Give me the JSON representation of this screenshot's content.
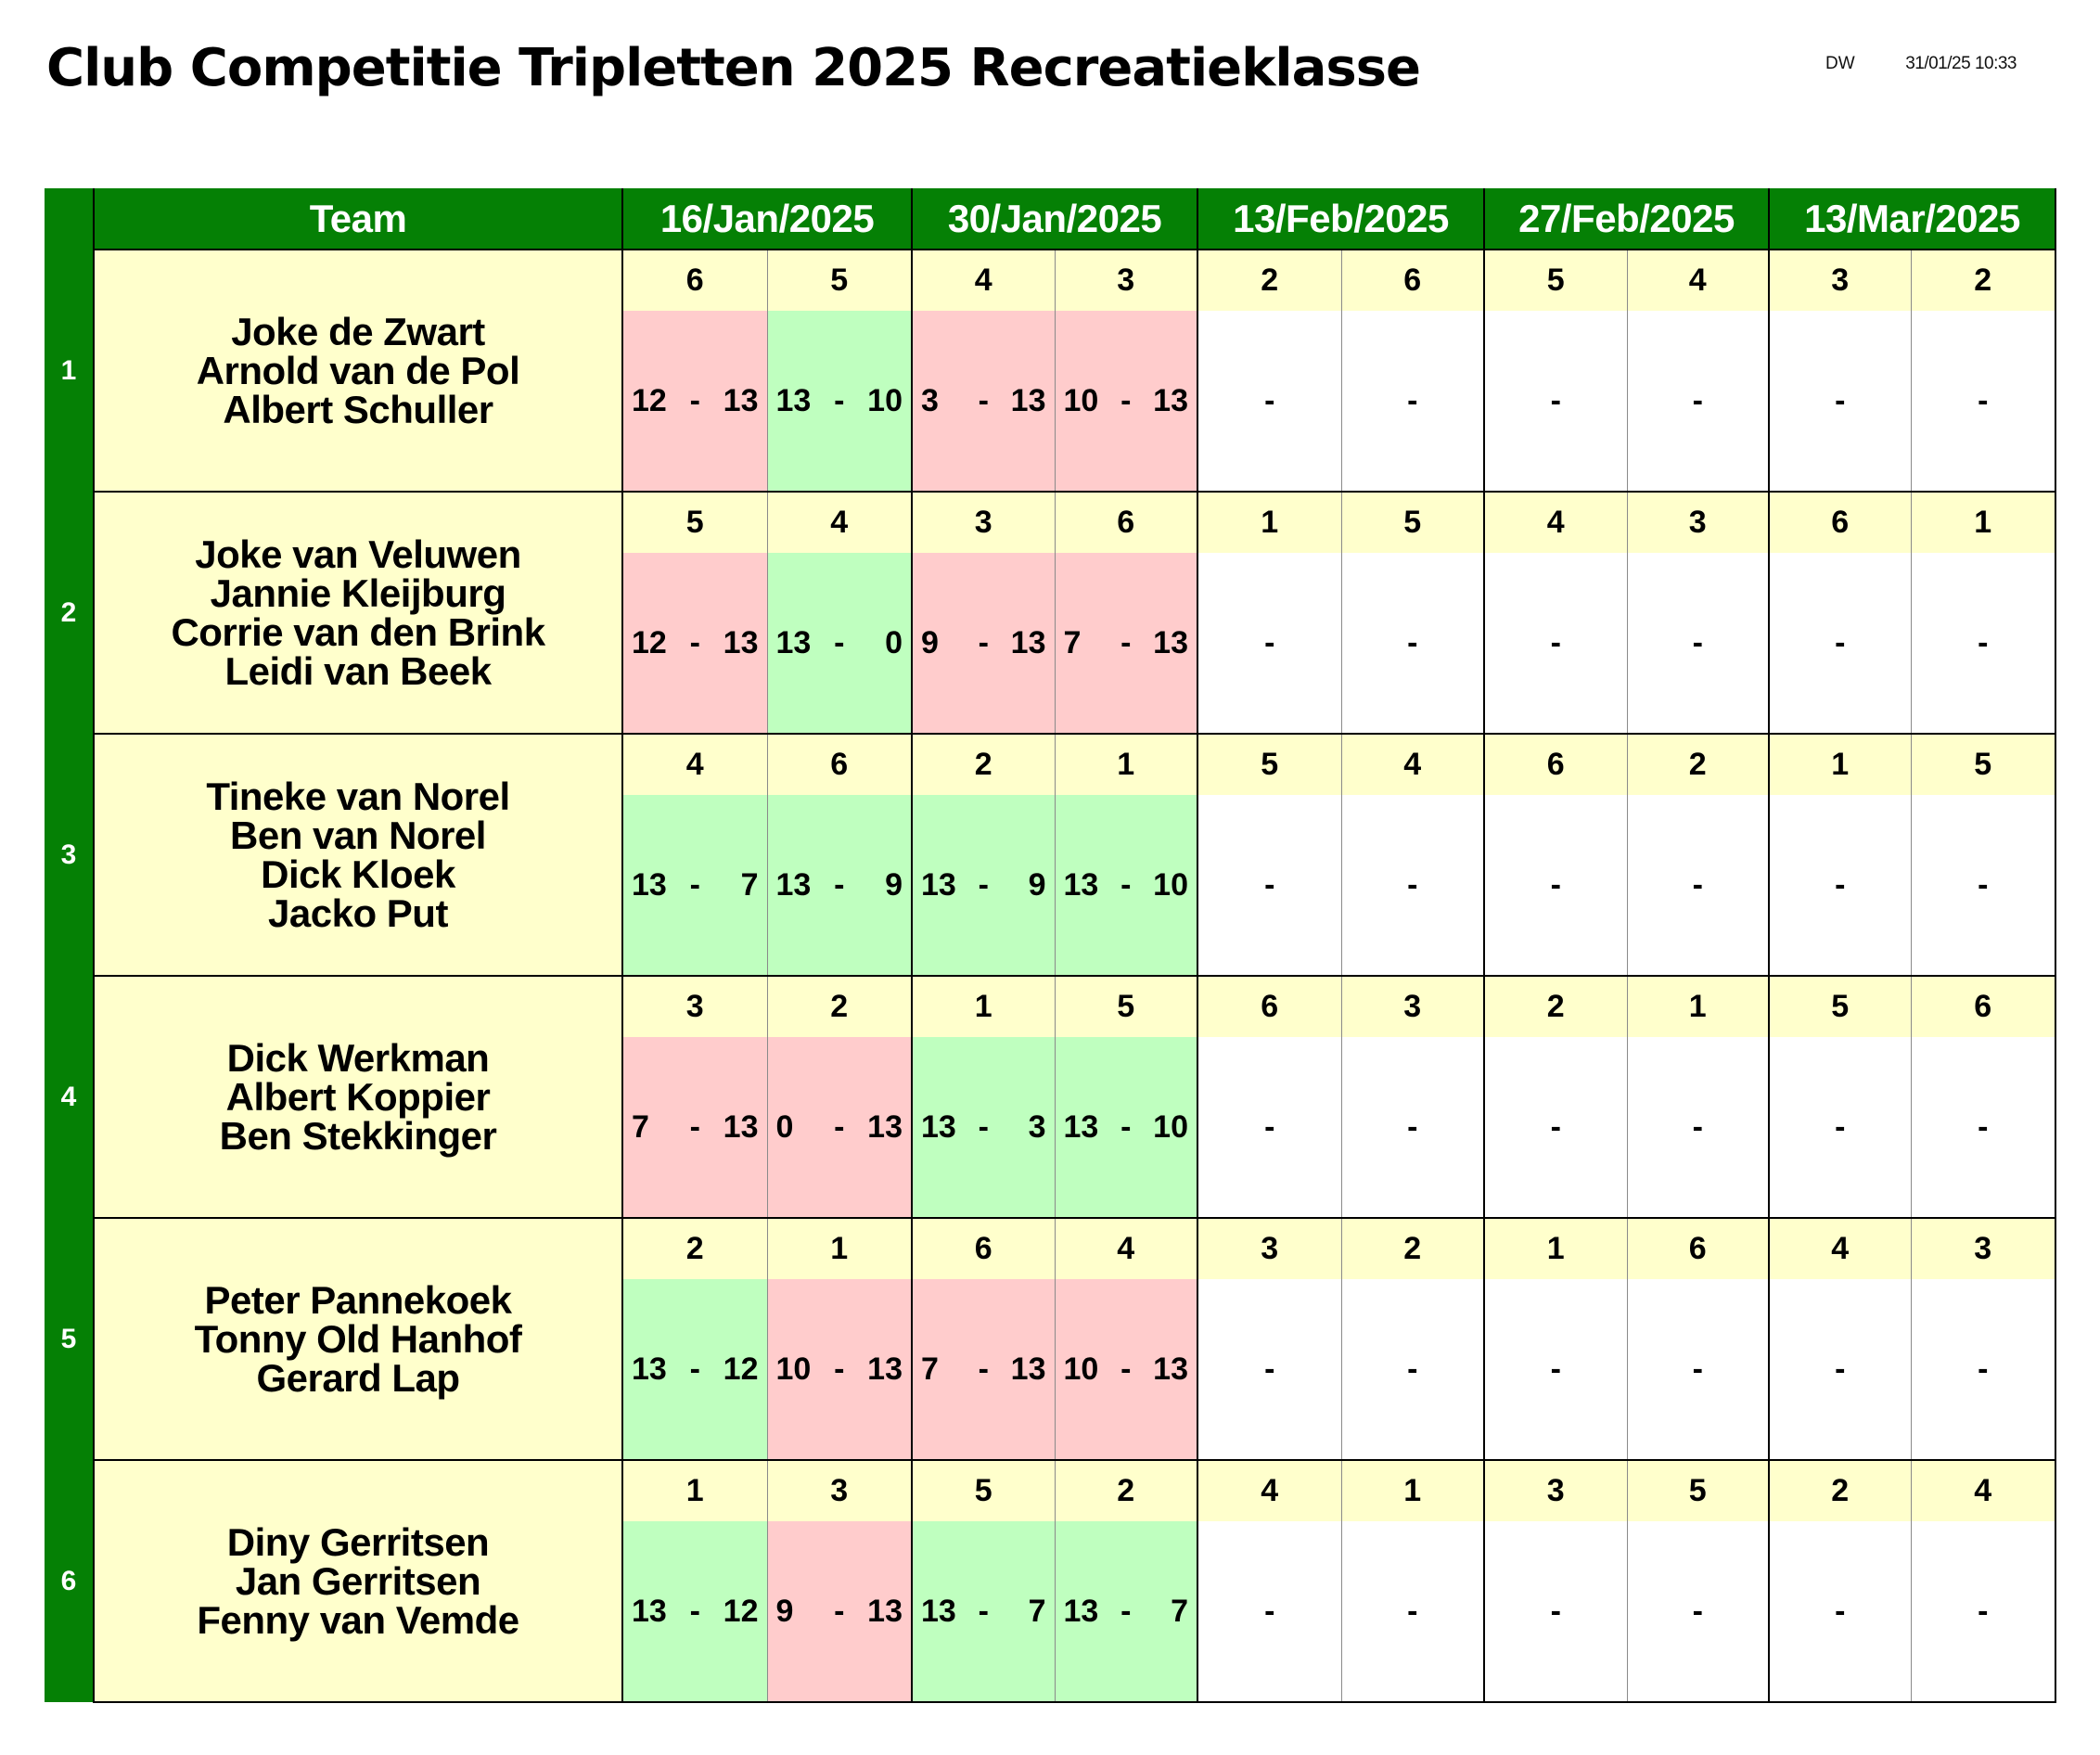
{
  "title": "Club Competitie Tripletten 2025 Recreatieklasse",
  "meta": {
    "initials": "DW",
    "timestamp": "31/01/25 10:33"
  },
  "header": {
    "team_label": "Team",
    "dates": [
      "16/Jan/2025",
      "30/Jan/2025",
      "13/Feb/2025",
      "27/Feb/2025",
      "13/Mar/2025"
    ]
  },
  "colors": {
    "header_green": "#058005",
    "team_yellow": "#ffffcc",
    "win_green": "#bfffbf",
    "loss_red": "#ffcccc"
  },
  "teams": [
    {
      "number": "1",
      "players": [
        "Joke de Zwart",
        "Arnold van de Pol",
        "Albert Schuller"
      ],
      "opponents": [
        "6",
        "5",
        "4",
        "3",
        "2",
        "6",
        "5",
        "4",
        "3",
        "2"
      ],
      "scores": [
        [
          "12",
          "13"
        ],
        [
          "13",
          "10"
        ],
        [
          "3",
          "13"
        ],
        [
          "10",
          "13"
        ],
        null,
        null,
        null,
        null,
        null,
        null
      ]
    },
    {
      "number": "2",
      "players": [
        "Joke van Veluwen",
        "Jannie Kleijburg",
        "Corrie van den Brink",
        "Leidi van Beek"
      ],
      "opponents": [
        "5",
        "4",
        "3",
        "6",
        "1",
        "5",
        "4",
        "3",
        "6",
        "1"
      ],
      "scores": [
        [
          "12",
          "13"
        ],
        [
          "13",
          "0"
        ],
        [
          "9",
          "13"
        ],
        [
          "7",
          "13"
        ],
        null,
        null,
        null,
        null,
        null,
        null
      ]
    },
    {
      "number": "3",
      "players": [
        "Tineke van Norel",
        "Ben van Norel",
        "Dick Kloek",
        "Jacko Put"
      ],
      "opponents": [
        "4",
        "6",
        "2",
        "1",
        "5",
        "4",
        "6",
        "2",
        "1",
        "5"
      ],
      "scores": [
        [
          "13",
          "7"
        ],
        [
          "13",
          "9"
        ],
        [
          "13",
          "9"
        ],
        [
          "13",
          "10"
        ],
        null,
        null,
        null,
        null,
        null,
        null
      ]
    },
    {
      "number": "4",
      "players": [
        "Dick Werkman",
        "Albert Koppier",
        "Ben Stekkinger"
      ],
      "opponents": [
        "3",
        "2",
        "1",
        "5",
        "6",
        "3",
        "2",
        "1",
        "5",
        "6"
      ],
      "scores": [
        [
          "7",
          "13"
        ],
        [
          "0",
          "13"
        ],
        [
          "13",
          "3"
        ],
        [
          "13",
          "10"
        ],
        null,
        null,
        null,
        null,
        null,
        null
      ]
    },
    {
      "number": "5",
      "players": [
        "Peter Pannekoek",
        "Tonny Old Hanhof",
        "Gerard Lap"
      ],
      "opponents": [
        "2",
        "1",
        "6",
        "4",
        "3",
        "2",
        "1",
        "6",
        "4",
        "3"
      ],
      "scores": [
        [
          "13",
          "12"
        ],
        [
          "10",
          "13"
        ],
        [
          "7",
          "13"
        ],
        [
          "10",
          "13"
        ],
        null,
        null,
        null,
        null,
        null,
        null
      ]
    },
    {
      "number": "6",
      "players": [
        "Diny Gerritsen",
        "Jan Gerritsen",
        "Fenny van Vemde"
      ],
      "opponents": [
        "1",
        "3",
        "5",
        "2",
        "4",
        "1",
        "3",
        "5",
        "2",
        "4"
      ],
      "scores": [
        [
          "13",
          "12"
        ],
        [
          "9",
          "13"
        ],
        [
          "13",
          "7"
        ],
        [
          "13",
          "7"
        ],
        null,
        null,
        null,
        null,
        null,
        null
      ]
    }
  ],
  "score_separator": "-",
  "empty_score": "-"
}
